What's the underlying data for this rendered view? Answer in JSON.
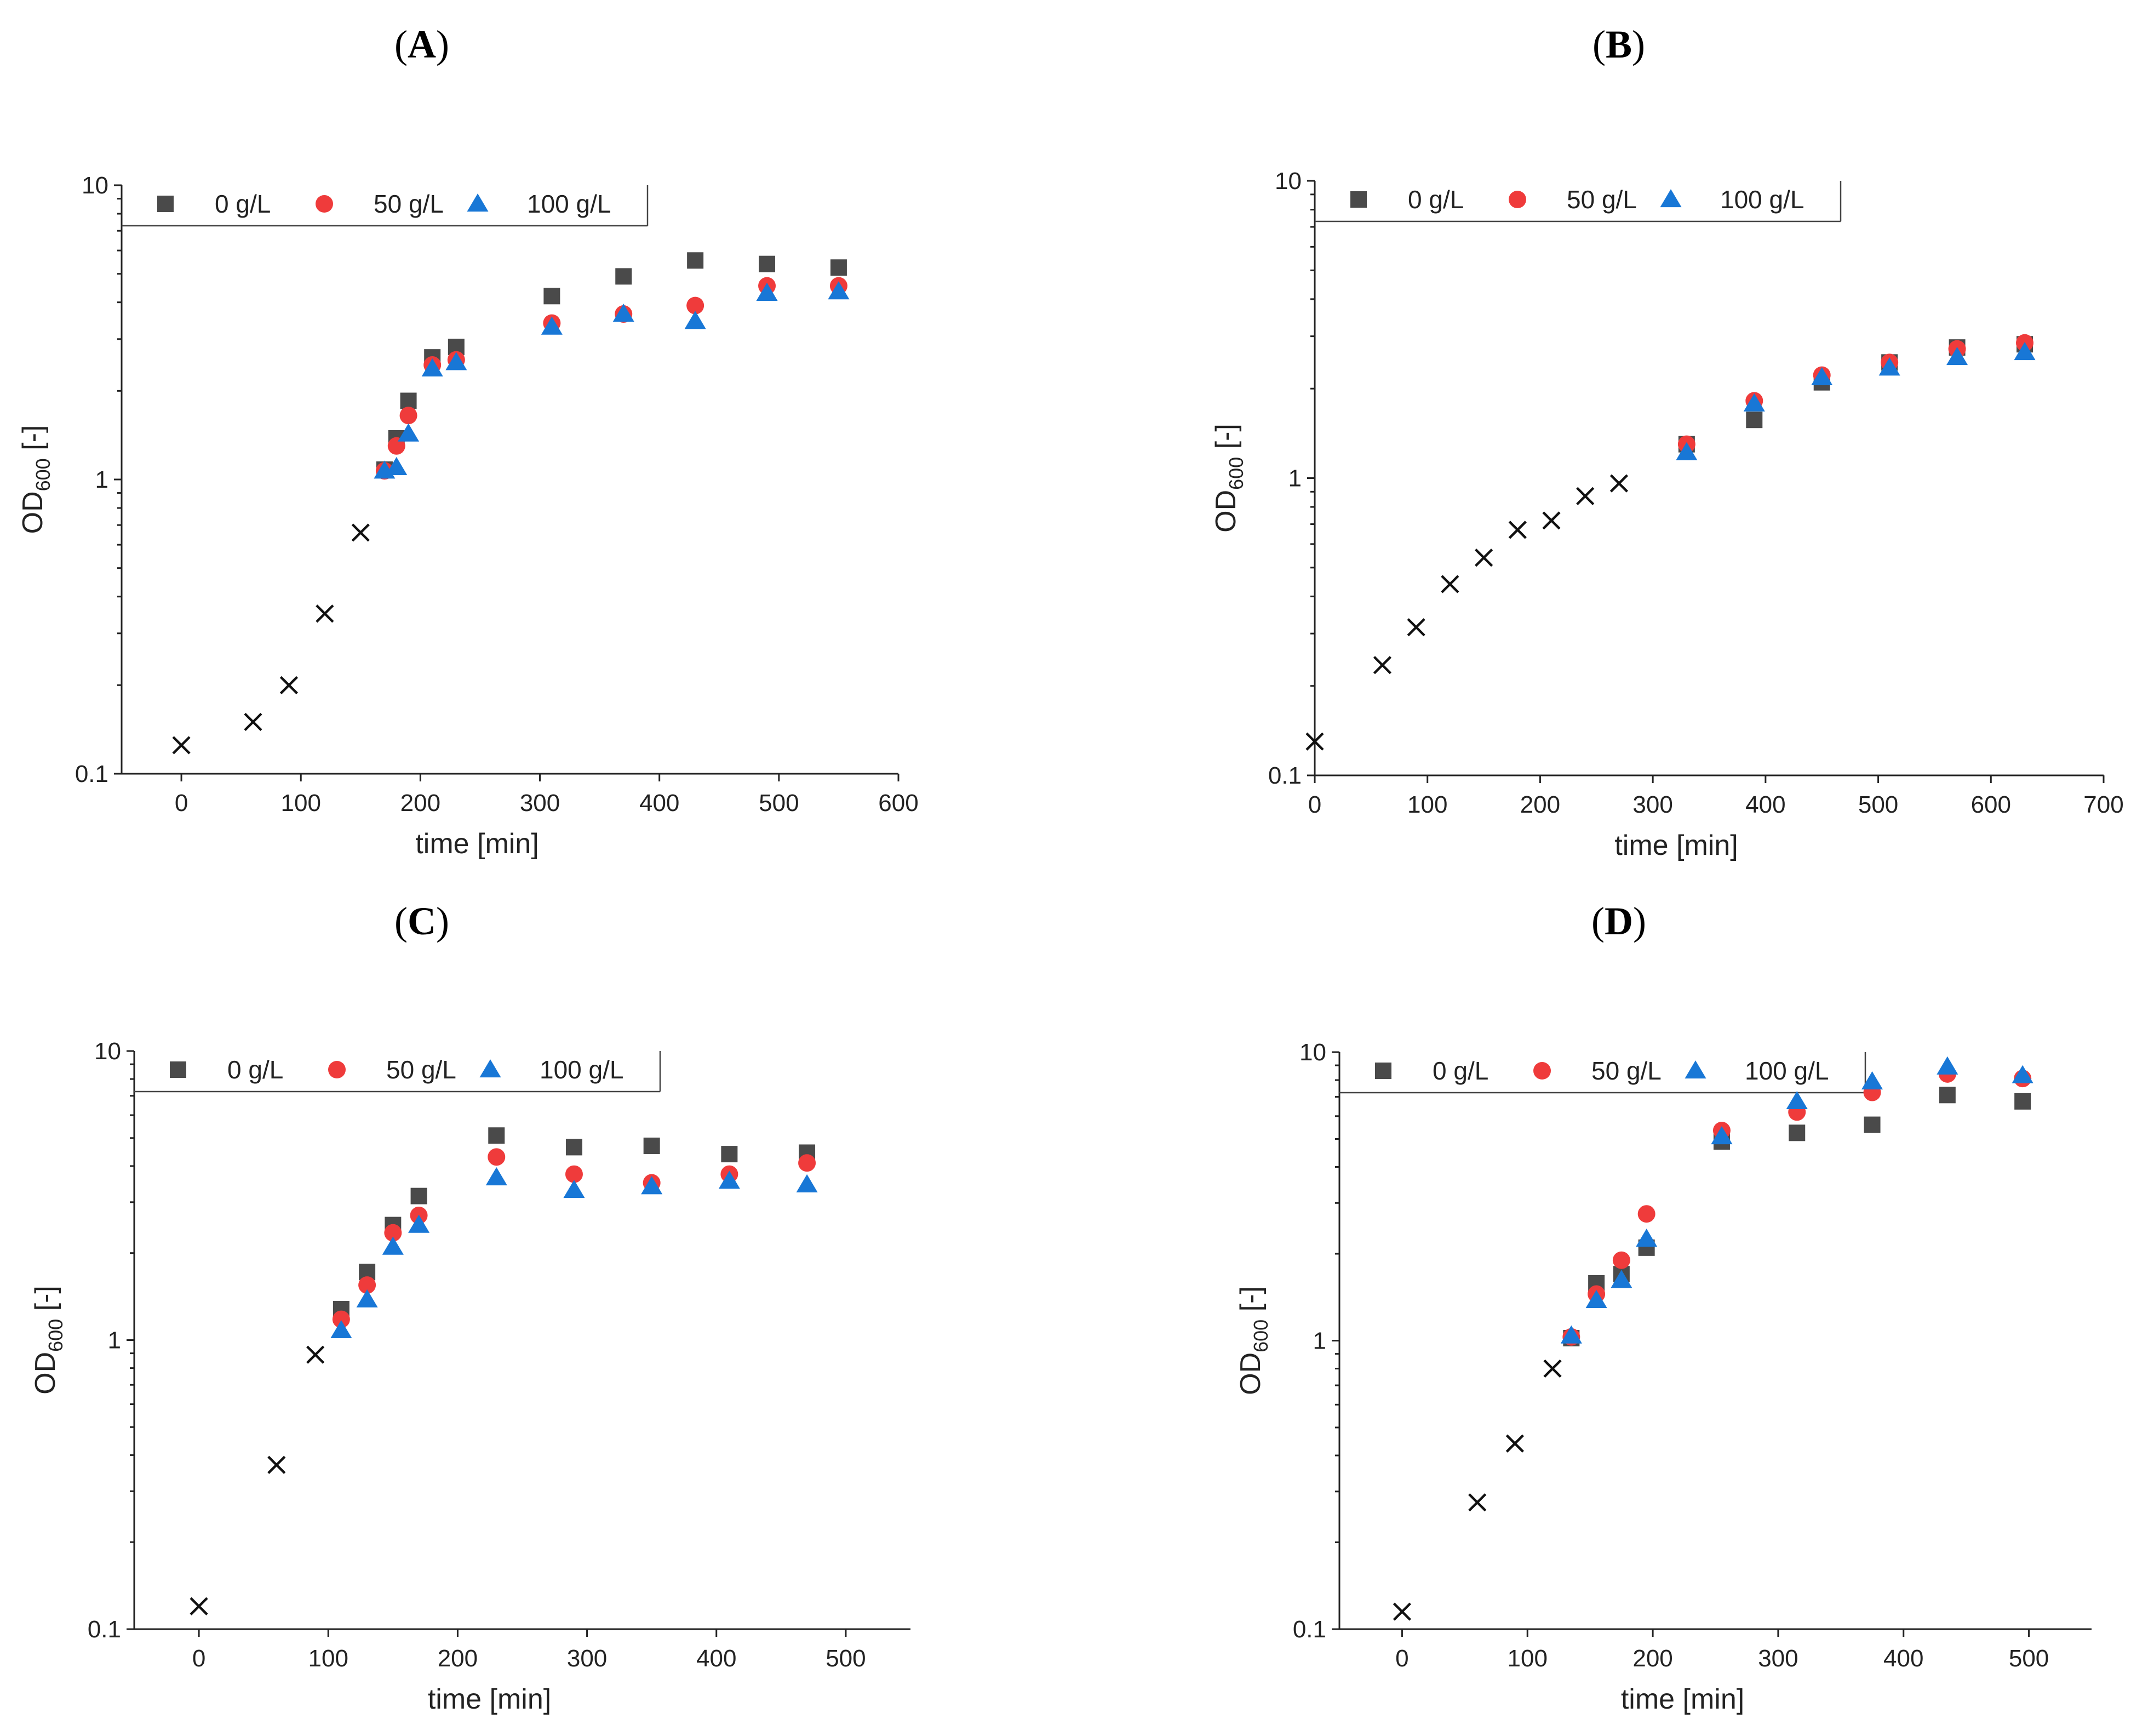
{
  "chart_data": [
    {
      "panel": "(A)",
      "type": "scatter",
      "xlabel": "time [min]",
      "ylabel": "OD600 [-]",
      "ylabel_main": "OD",
      "ylabel_sub": "600",
      "ylabel_unit": " [-]",
      "yscale": "log",
      "xlim": [
        -50,
        600
      ],
      "ylim": [
        0.1,
        10
      ],
      "xticks": [
        "0",
        "100",
        "200",
        "300",
        "400",
        "500",
        "600"
      ],
      "xtick_values": [
        0,
        100,
        200,
        300,
        400,
        500,
        600
      ],
      "yticks": [
        "0.1",
        "1",
        "10"
      ],
      "ytick_values": [
        0.1,
        1,
        10
      ],
      "legend": [
        "0 g/L",
        "50 g/L",
        "100 g/L"
      ],
      "legend_position": "top-left",
      "preculture": {
        "marker": "cross",
        "x": [
          0,
          60,
          90,
          120,
          150
        ],
        "y": [
          0.125,
          0.15,
          0.2,
          0.35,
          0.66
        ]
      },
      "series": [
        {
          "name": "0 g/L",
          "marker": "square",
          "color": "#4a4a4a",
          "x": [
            170,
            180,
            190,
            210,
            230,
            310,
            370,
            430,
            490,
            550
          ],
          "y": [
            1.08,
            1.38,
            1.85,
            2.6,
            2.82,
            4.2,
            4.9,
            5.55,
            5.4,
            5.25
          ]
        },
        {
          "name": "50 g/L",
          "marker": "circle",
          "color": "#ef3b3b",
          "x": [
            170,
            180,
            190,
            210,
            230,
            310,
            370,
            430,
            490,
            550
          ],
          "y": [
            1.07,
            1.3,
            1.65,
            2.45,
            2.55,
            3.4,
            3.65,
            3.9,
            4.55,
            4.55
          ]
        },
        {
          "name": "100 g/L",
          "marker": "triangle",
          "color": "#1877d6",
          "x": [
            170,
            180,
            190,
            210,
            230,
            310,
            370,
            430,
            490,
            550
          ],
          "y": [
            1.07,
            1.1,
            1.43,
            2.38,
            2.5,
            3.3,
            3.65,
            3.45,
            4.3,
            4.35
          ]
        }
      ]
    },
    {
      "panel": "(B)",
      "type": "scatter",
      "xlabel": "time [min]",
      "ylabel": "OD600 [-]",
      "ylabel_main": "OD",
      "ylabel_sub": "600",
      "ylabel_unit": " [-]",
      "yscale": "log",
      "xlim": [
        0,
        700
      ],
      "ylim": [
        0.1,
        10
      ],
      "xticks": [
        "0",
        "100",
        "200",
        "300",
        "400",
        "500",
        "600",
        "700"
      ],
      "xtick_values": [
        0,
        100,
        200,
        300,
        400,
        500,
        600,
        700
      ],
      "yticks": [
        "0.1",
        "1",
        "10"
      ],
      "ytick_values": [
        0.1,
        1,
        10
      ],
      "legend": [
        "0 g/L",
        "50 g/L",
        "100 g/L"
      ],
      "legend_position": "top-left",
      "preculture": {
        "marker": "cross",
        "x": [
          0,
          60,
          90,
          120,
          150,
          180,
          210,
          240,
          270
        ],
        "y": [
          0.13,
          0.235,
          0.315,
          0.44,
          0.54,
          0.67,
          0.72,
          0.87,
          0.96
        ]
      },
      "series": [
        {
          "name": "0 g/L",
          "marker": "square",
          "color": "#4a4a4a",
          "x": [
            330,
            390,
            450,
            510,
            570,
            630
          ],
          "y": [
            1.3,
            1.57,
            2.1,
            2.45,
            2.75,
            2.82
          ]
        },
        {
          "name": "50 g/L",
          "marker": "circle",
          "color": "#ef3b3b",
          "x": [
            330,
            390,
            450,
            510,
            570,
            630
          ],
          "y": [
            1.3,
            1.82,
            2.22,
            2.45,
            2.72,
            2.85
          ]
        },
        {
          "name": "100 g/L",
          "marker": "triangle",
          "color": "#1877d6",
          "x": [
            330,
            390,
            450,
            510,
            570,
            630
          ],
          "y": [
            1.22,
            1.78,
            2.18,
            2.35,
            2.55,
            2.65
          ]
        }
      ]
    },
    {
      "panel": "(C)",
      "type": "scatter",
      "xlabel": "time [min]",
      "ylabel": "OD600 [-]",
      "ylabel_main": "OD",
      "ylabel_sub": "600",
      "ylabel_unit": " [-]",
      "yscale": "log",
      "xlim": [
        -50,
        550
      ],
      "ylim": [
        0.1,
        10
      ],
      "xticks": [
        "0",
        "100",
        "200",
        "300",
        "400",
        "500"
      ],
      "xtick_values": [
        0,
        100,
        200,
        300,
        400,
        500
      ],
      "yticks": [
        "0.1",
        "1",
        "10"
      ],
      "ytick_values": [
        0.1,
        1,
        10
      ],
      "legend": [
        "0 g/L",
        "50 g/L",
        "100 g/L"
      ],
      "legend_position": "top-left",
      "preculture": {
        "marker": "cross",
        "x": [
          0,
          60,
          90
        ],
        "y": [
          0.12,
          0.37,
          0.89
        ]
      },
      "series": [
        {
          "name": "0 g/L",
          "marker": "square",
          "color": "#4a4a4a",
          "x": [
            110,
            130,
            150,
            170,
            230,
            290,
            350,
            410,
            470
          ],
          "y": [
            1.28,
            1.72,
            2.5,
            3.15,
            5.1,
            4.65,
            4.7,
            4.4,
            4.45
          ]
        },
        {
          "name": "50 g/L",
          "marker": "circle",
          "color": "#ef3b3b",
          "x": [
            110,
            130,
            150,
            170,
            230,
            290,
            350,
            410,
            470
          ],
          "y": [
            1.18,
            1.55,
            2.35,
            2.7,
            4.3,
            3.75,
            3.5,
            3.75,
            4.1
          ]
        },
        {
          "name": "100 g/L",
          "marker": "triangle",
          "color": "#1877d6",
          "x": [
            110,
            130,
            150,
            170,
            230,
            290,
            350,
            410,
            470
          ],
          "y": [
            1.08,
            1.38,
            2.1,
            2.5,
            3.65,
            3.3,
            3.4,
            3.55,
            3.45
          ]
        }
      ]
    },
    {
      "panel": "(D)",
      "type": "scatter",
      "xlabel": "time [min]",
      "ylabel": "OD600 [-]",
      "ylabel_main": "OD",
      "ylabel_sub": "600",
      "ylabel_unit": " [-]",
      "yscale": "log",
      "xlim": [
        -50,
        550
      ],
      "ylim": [
        0.1,
        10
      ],
      "xticks": [
        "0",
        "100",
        "200",
        "300",
        "400",
        "500"
      ],
      "xtick_values": [
        0,
        100,
        200,
        300,
        400,
        500
      ],
      "yticks": [
        "0.1",
        "1",
        "10"
      ],
      "ytick_values": [
        0.1,
        1,
        10
      ],
      "legend": [
        "0 g/L",
        "50 g/L",
        "100 g/L"
      ],
      "legend_position": "top-left",
      "preculture": {
        "marker": "cross",
        "x": [
          0,
          60,
          90,
          120
        ],
        "y": [
          0.115,
          0.275,
          0.44,
          0.8
        ]
      },
      "series": [
        {
          "name": "0 g/L",
          "marker": "square",
          "color": "#4a4a4a",
          "x": [
            135,
            155,
            175,
            195,
            255,
            315,
            375,
            435,
            495
          ],
          "y": [
            1.02,
            1.58,
            1.7,
            2.1,
            4.9,
            5.25,
            5.6,
            7.1,
            6.75
          ]
        },
        {
          "name": "50 g/L",
          "marker": "circle",
          "color": "#ef3b3b",
          "x": [
            135,
            155,
            175,
            195,
            255,
            315,
            375,
            435,
            495
          ],
          "y": [
            1.03,
            1.45,
            1.9,
            2.75,
            5.35,
            6.2,
            7.25,
            8.4,
            8.1
          ]
        },
        {
          "name": "100 g/L",
          "marker": "triangle",
          "color": "#1877d6",
          "x": [
            135,
            155,
            175,
            195,
            255,
            315,
            375,
            435,
            495
          ],
          "y": [
            1.04,
            1.38,
            1.62,
            2.25,
            5.1,
            6.75,
            7.9,
            8.9,
            8.3
          ]
        }
      ]
    }
  ]
}
